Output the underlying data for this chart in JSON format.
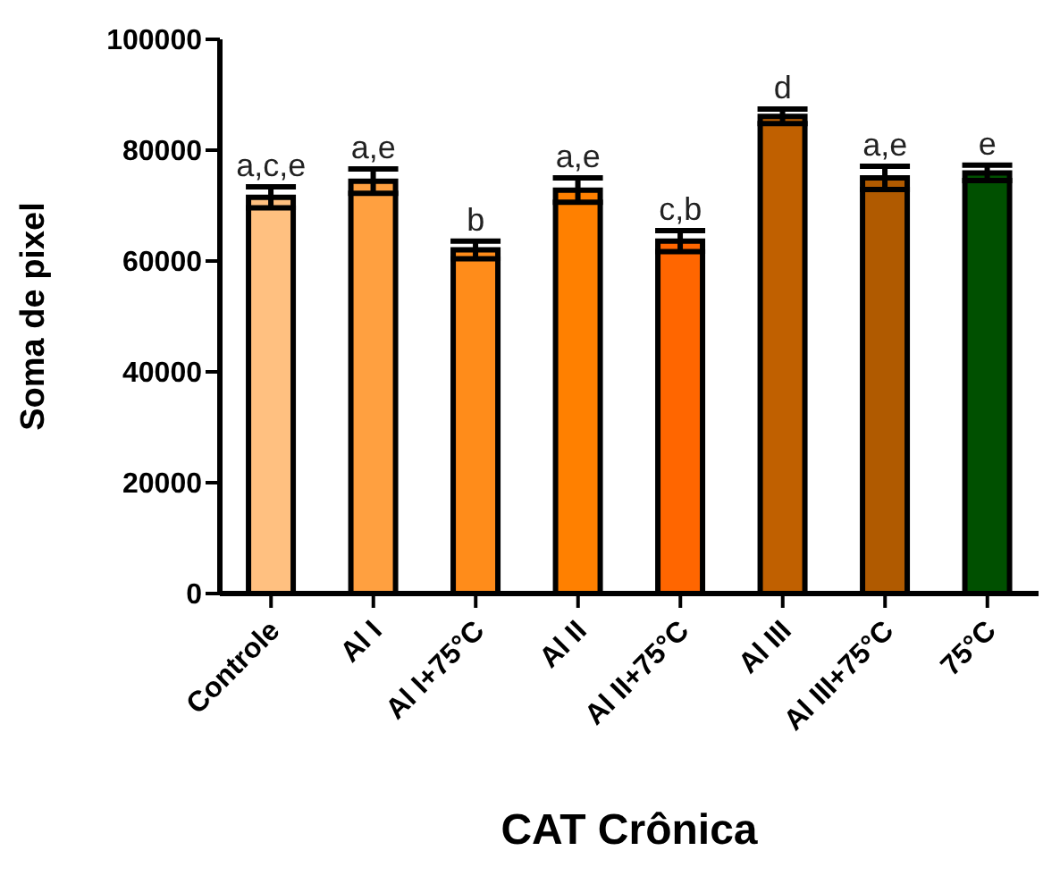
{
  "chart_data": {
    "type": "bar",
    "xlabel": "CAT Crônica",
    "ylabel": "Soma de pixel",
    "categories": [
      "Controle",
      "Al I",
      "Al I+75°C",
      "Al II",
      "Al II+75°C",
      "Al III",
      "Al III+75°C",
      "75°C"
    ],
    "values": [
      71500,
      74400,
      62000,
      72800,
      63600,
      86100,
      75000,
      75900
    ],
    "errors": [
      1900,
      2200,
      1600,
      2200,
      1900,
      1300,
      2100,
      1400
    ],
    "colors": [
      "#ffc080",
      "#ffa040",
      "#ff8c1a",
      "#ff8000",
      "#ff6600",
      "#c06000",
      "#b05a00",
      "#005000"
    ],
    "ylim": [
      0,
      100000
    ],
    "yticks": [
      0,
      20000,
      40000,
      60000,
      80000,
      100000
    ],
    "grid": false,
    "legend": false,
    "annotations": [
      {
        "text": "a,c,e",
        "x": "Controle",
        "y": 73400
      },
      {
        "text": "a,e",
        "x": "Al I",
        "y": 76600
      },
      {
        "text": "b",
        "x": "Al I+75°C",
        "y": 63600
      },
      {
        "text": "a,e",
        "x": "Al II",
        "y": 75000
      },
      {
        "text": "c,b",
        "x": "Al II+75°C",
        "y": 65500
      },
      {
        "text": "d",
        "x": "Al III",
        "y": 87400
      },
      {
        "text": "a,e",
        "x": "Al III+75°C",
        "y": 77100
      },
      {
        "text": "e",
        "x": "75°C",
        "y": 77300
      }
    ]
  }
}
